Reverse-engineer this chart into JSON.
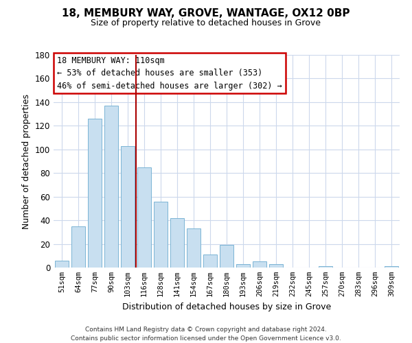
{
  "title": "18, MEMBURY WAY, GROVE, WANTAGE, OX12 0BP",
  "subtitle": "Size of property relative to detached houses in Grove",
  "xlabel": "Distribution of detached houses by size in Grove",
  "ylabel": "Number of detached properties",
  "footer_line1": "Contains HM Land Registry data © Crown copyright and database right 2024.",
  "footer_line2": "Contains public sector information licensed under the Open Government Licence v3.0.",
  "bar_labels": [
    "51sqm",
    "64sqm",
    "77sqm",
    "90sqm",
    "103sqm",
    "116sqm",
    "128sqm",
    "141sqm",
    "154sqm",
    "167sqm",
    "180sqm",
    "193sqm",
    "206sqm",
    "219sqm",
    "232sqm",
    "245sqm",
    "257sqm",
    "270sqm",
    "283sqm",
    "296sqm",
    "309sqm"
  ],
  "bar_values": [
    6,
    35,
    126,
    137,
    103,
    85,
    56,
    42,
    33,
    11,
    19,
    3,
    5,
    3,
    0,
    0,
    1,
    0,
    0,
    0,
    1
  ],
  "bar_color": "#c8dff0",
  "bar_edge_color": "#7ab4d4",
  "vline_x": 4.5,
  "vline_color": "#aa0000",
  "ylim": [
    0,
    180
  ],
  "yticks": [
    0,
    20,
    40,
    60,
    80,
    100,
    120,
    140,
    160,
    180
  ],
  "annotation_title": "18 MEMBURY WAY: 110sqm",
  "annotation_line1": "← 53% of detached houses are smaller (353)",
  "annotation_line2": "46% of semi-detached houses are larger (302) →",
  "annotation_box_color": "#ffffff",
  "annotation_box_edge": "#cc0000",
  "bg_color": "#ffffff",
  "grid_color": "#ccd8ec"
}
